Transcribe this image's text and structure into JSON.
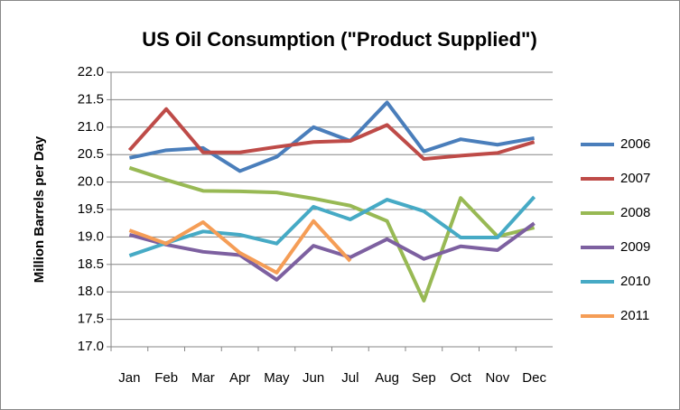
{
  "chart_data": {
    "type": "line",
    "title": "US Oil Consumption (\"Product Supplied\")",
    "ylabel": "Million Barrels per Day",
    "categories": [
      "Jan",
      "Feb",
      "Mar",
      "Apr",
      "May",
      "Jun",
      "Jul",
      "Aug",
      "Sep",
      "Oct",
      "Nov",
      "Dec"
    ],
    "series": [
      {
        "name": "2006",
        "color": "#4a7ebb",
        "values": [
          20.44,
          20.58,
          20.62,
          20.2,
          20.46,
          21.0,
          20.75,
          21.45,
          20.56,
          20.78,
          20.68,
          20.8
        ]
      },
      {
        "name": "2007",
        "color": "#be4b48",
        "values": [
          20.58,
          21.33,
          20.54,
          20.54,
          20.64,
          20.73,
          20.75,
          21.04,
          20.42,
          20.48,
          20.53,
          20.73
        ]
      },
      {
        "name": "2008",
        "color": "#98b954",
        "values": [
          20.26,
          20.04,
          19.84,
          19.83,
          19.81,
          19.7,
          19.57,
          19.29,
          17.84,
          19.71,
          19.01,
          19.17
        ]
      },
      {
        "name": "2009",
        "color": "#7d60a0",
        "values": [
          19.04,
          18.86,
          18.73,
          18.67,
          18.22,
          18.84,
          18.63,
          18.96,
          18.6,
          18.83,
          18.76,
          19.25
        ]
      },
      {
        "name": "2010",
        "color": "#46aac5",
        "values": [
          18.66,
          18.89,
          19.1,
          19.04,
          18.88,
          19.55,
          19.32,
          19.68,
          19.47,
          18.99,
          18.99,
          19.73
        ]
      },
      {
        "name": "2011",
        "color": "#f59d56",
        "values": [
          19.12,
          18.88,
          19.27,
          18.71,
          18.35,
          19.29,
          18.56,
          null,
          null,
          null,
          null,
          null
        ]
      }
    ],
    "ylim": [
      17,
      22
    ],
    "yticks": [
      {
        "value": 17,
        "label": "17.0"
      },
      17.5,
      {
        "value": 18,
        "label": "18.0"
      },
      18.5,
      {
        "value": 19,
        "label": "19.0"
      },
      19.5,
      {
        "value": 20,
        "label": "20.0"
      },
      20.5,
      {
        "value": 21,
        "label": "21.0"
      },
      21.5,
      {
        "value": 22,
        "label": "22.0"
      }
    ],
    "grid": true,
    "legend": "right"
  }
}
